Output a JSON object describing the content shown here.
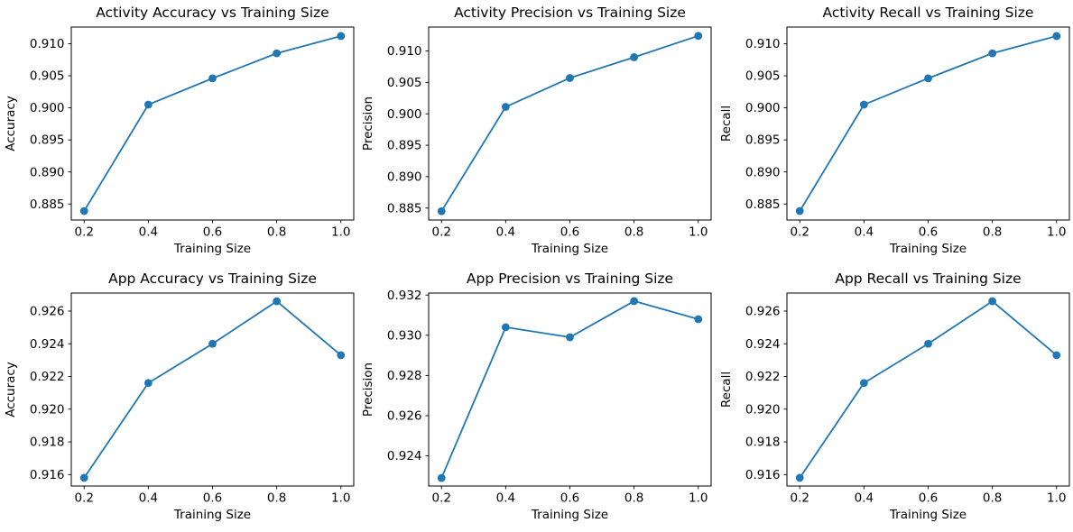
{
  "figure": {
    "background": "#ffffff",
    "accent_color": "#1f77b4",
    "axes_color": "#000000",
    "rows": 2,
    "cols": 3
  },
  "chart_data": [
    {
      "type": "line",
      "title": "Activity Accuracy vs Training Size",
      "xlabel": "Training Size",
      "ylabel": "Accuracy",
      "x": [
        0.2,
        0.4,
        0.6,
        0.8,
        1.0
      ],
      "y": [
        0.8839,
        0.9005,
        0.9046,
        0.9085,
        0.9112
      ],
      "xticks": [
        0.2,
        0.4,
        0.6,
        0.8,
        1.0
      ],
      "xtick_labels": [
        "0.2",
        "0.4",
        "0.6",
        "0.8",
        "1.0"
      ],
      "yticks": [
        0.885,
        0.89,
        0.895,
        0.9,
        0.905,
        0.91
      ],
      "ytick_labels": [
        "0.885",
        "0.890",
        "0.895",
        "0.900",
        "0.905",
        "0.910"
      ],
      "xlim": [
        0.16,
        1.04
      ],
      "ylim": [
        0.8825,
        0.9126
      ],
      "line_color": "#1f77b4",
      "marker": "o",
      "grid": false,
      "legend": null
    },
    {
      "type": "line",
      "title": "Activity Precision vs Training Size",
      "xlabel": "Training Size",
      "ylabel": "Precision",
      "x": [
        0.2,
        0.4,
        0.6,
        0.8,
        1.0
      ],
      "y": [
        0.8845,
        0.9011,
        0.9057,
        0.909,
        0.9124
      ],
      "xticks": [
        0.2,
        0.4,
        0.6,
        0.8,
        1.0
      ],
      "xtick_labels": [
        "0.2",
        "0.4",
        "0.6",
        "0.8",
        "1.0"
      ],
      "yticks": [
        0.885,
        0.89,
        0.895,
        0.9,
        0.905,
        0.91
      ],
      "ytick_labels": [
        "0.885",
        "0.890",
        "0.895",
        "0.900",
        "0.905",
        "0.910"
      ],
      "xlim": [
        0.16,
        1.04
      ],
      "ylim": [
        0.8831,
        0.9138
      ],
      "line_color": "#1f77b4",
      "marker": "o",
      "grid": false,
      "legend": null
    },
    {
      "type": "line",
      "title": "Activity Recall vs Training Size",
      "xlabel": "Training Size",
      "ylabel": "Recall",
      "x": [
        0.2,
        0.4,
        0.6,
        0.8,
        1.0
      ],
      "y": [
        0.8839,
        0.9005,
        0.9046,
        0.9085,
        0.9112
      ],
      "xticks": [
        0.2,
        0.4,
        0.6,
        0.8,
        1.0
      ],
      "xtick_labels": [
        "0.2",
        "0.4",
        "0.6",
        "0.8",
        "1.0"
      ],
      "yticks": [
        0.885,
        0.89,
        0.895,
        0.9,
        0.905,
        0.91
      ],
      "ytick_labels": [
        "0.885",
        "0.890",
        "0.895",
        "0.900",
        "0.905",
        "0.910"
      ],
      "xlim": [
        0.16,
        1.04
      ],
      "ylim": [
        0.8825,
        0.9126
      ],
      "line_color": "#1f77b4",
      "marker": "o",
      "grid": false,
      "legend": null
    },
    {
      "type": "line",
      "title": "App Accuracy vs Training Size",
      "xlabel": "Training Size",
      "ylabel": "Accuracy",
      "x": [
        0.2,
        0.4,
        0.6,
        0.8,
        1.0
      ],
      "y": [
        0.9158,
        0.9216,
        0.924,
        0.9266,
        0.9233
      ],
      "xticks": [
        0.2,
        0.4,
        0.6,
        0.8,
        1.0
      ],
      "xtick_labels": [
        "0.2",
        "0.4",
        "0.6",
        "0.8",
        "1.0"
      ],
      "yticks": [
        0.916,
        0.918,
        0.92,
        0.922,
        0.924,
        0.926
      ],
      "ytick_labels": [
        "0.916",
        "0.918",
        "0.920",
        "0.922",
        "0.924",
        "0.926"
      ],
      "xlim": [
        0.16,
        1.04
      ],
      "ylim": [
        0.9153,
        0.9271
      ],
      "line_color": "#1f77b4",
      "marker": "o",
      "grid": false,
      "legend": null
    },
    {
      "type": "line",
      "title": "App Precision vs Training Size",
      "xlabel": "Training Size",
      "ylabel": "Precision",
      "x": [
        0.2,
        0.4,
        0.6,
        0.8,
        1.0
      ],
      "y": [
        0.9229,
        0.9304,
        0.9299,
        0.9317,
        0.9308
      ],
      "xticks": [
        0.2,
        0.4,
        0.6,
        0.8,
        1.0
      ],
      "xtick_labels": [
        "0.2",
        "0.4",
        "0.6",
        "0.8",
        "1.0"
      ],
      "yticks": [
        0.924,
        0.926,
        0.928,
        0.93,
        0.932
      ],
      "ytick_labels": [
        "0.924",
        "0.926",
        "0.928",
        "0.930",
        "0.932"
      ],
      "xlim": [
        0.16,
        1.04
      ],
      "ylim": [
        0.9225,
        0.9321
      ],
      "line_color": "#1f77b4",
      "marker": "o",
      "grid": false,
      "legend": null
    },
    {
      "type": "line",
      "title": "App Recall vs Training Size",
      "xlabel": "Training Size",
      "ylabel": "Recall",
      "x": [
        0.2,
        0.4,
        0.6,
        0.8,
        1.0
      ],
      "y": [
        0.9158,
        0.9216,
        0.924,
        0.9266,
        0.9233
      ],
      "xticks": [
        0.2,
        0.4,
        0.6,
        0.8,
        1.0
      ],
      "xtick_labels": [
        "0.2",
        "0.4",
        "0.6",
        "0.8",
        "1.0"
      ],
      "yticks": [
        0.916,
        0.918,
        0.92,
        0.922,
        0.924,
        0.926
      ],
      "ytick_labels": [
        "0.916",
        "0.918",
        "0.920",
        "0.922",
        "0.924",
        "0.926"
      ],
      "xlim": [
        0.16,
        1.04
      ],
      "ylim": [
        0.9153,
        0.9271
      ],
      "line_color": "#1f77b4",
      "marker": "o",
      "grid": false,
      "legend": null
    }
  ]
}
